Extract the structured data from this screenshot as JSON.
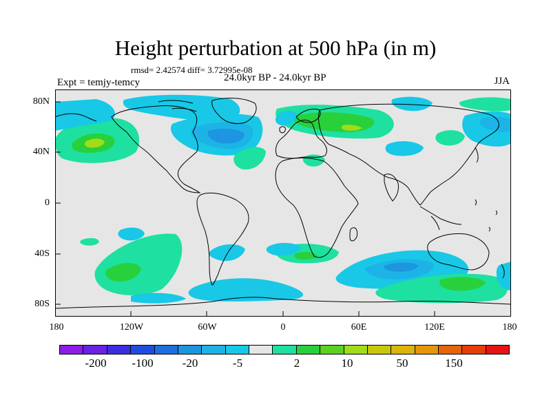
{
  "header": {
    "title": "Height perturbation at 500 hPa (in m)",
    "stats": "rmsd= 2.42574  diff= 3.72995e-08",
    "expt": "Expt = temjy-temcy",
    "center_label": "24.0kyr BP - 24.0kyr BP",
    "season": "JJA"
  },
  "map": {
    "y_ticks": [
      "80N",
      "40N",
      "0",
      "40S",
      "80S"
    ],
    "x_ticks": [
      "180",
      "120W",
      "60W",
      "0",
      "60E",
      "120E",
      "180"
    ],
    "background_color": "#e6e6e6",
    "coast_color": "#000000"
  },
  "legend": {
    "colors": [
      "#8c1de6",
      "#6a22e6",
      "#3b2ee0",
      "#1f4ce0",
      "#1e6fe0",
      "#1d95e0",
      "#1db3e6",
      "#18c8e6",
      "#e6e6e6",
      "#1ee0a0",
      "#28d03c",
      "#5ad21e",
      "#a0dc18",
      "#c8c80a",
      "#dcb40a",
      "#e6960a",
      "#e6640a",
      "#e63c0a",
      "#e61414"
    ],
    "labels": [
      "-200",
      "-100",
      "-20",
      "-5",
      "2",
      "10",
      "50",
      "150"
    ]
  }
}
